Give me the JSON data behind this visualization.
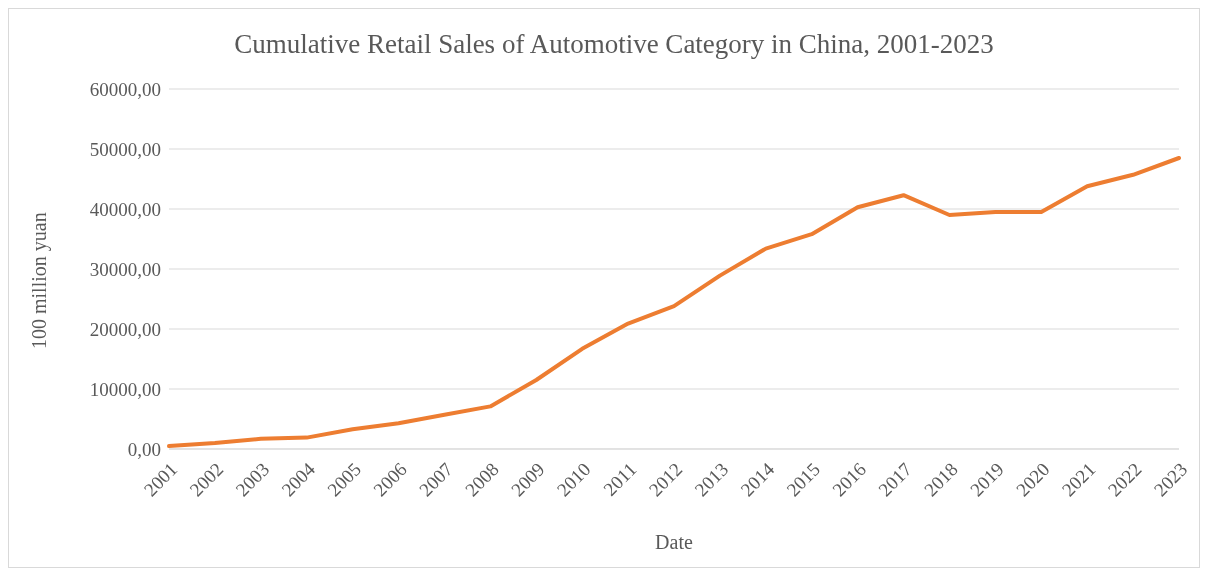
{
  "chart_data": {
    "type": "line",
    "title": "Cumulative Retail Sales of Automotive Category in China, 2001-2023",
    "xlabel": "Date",
    "ylabel": "100 million yuan",
    "categories": [
      "2001",
      "2002",
      "2003",
      "2004",
      "2005",
      "2006",
      "2007",
      "2008",
      "2009",
      "2010",
      "2011",
      "2012",
      "2013",
      "2014",
      "2015",
      "2016",
      "2017",
      "2018",
      "2019",
      "2020",
      "2021",
      "2022",
      "2023"
    ],
    "series": [
      {
        "color": "#ed7d31",
        "values": [
          500,
          1000,
          1700,
          1900,
          3300,
          4300,
          5700,
          7100,
          11500,
          16700,
          20900,
          23800,
          28900,
          33400,
          35800,
          40300,
          42300,
          39000,
          39500,
          39500,
          43800,
          45700,
          48500
        ]
      }
    ],
    "ylim": [
      0,
      60000
    ],
    "yticks": [
      {
        "value": 0,
        "label": "0,00"
      },
      {
        "value": 10000,
        "label": "10000,00"
      },
      {
        "value": 20000,
        "label": "20000,00"
      },
      {
        "value": 30000,
        "label": "30000,00"
      },
      {
        "value": 40000,
        "label": "40000,00"
      },
      {
        "value": 50000,
        "label": "50000,00"
      },
      {
        "value": 60000,
        "label": "60000,00"
      }
    ],
    "grid": "y",
    "legend": false,
    "marker": "none",
    "line_style": "solid"
  }
}
